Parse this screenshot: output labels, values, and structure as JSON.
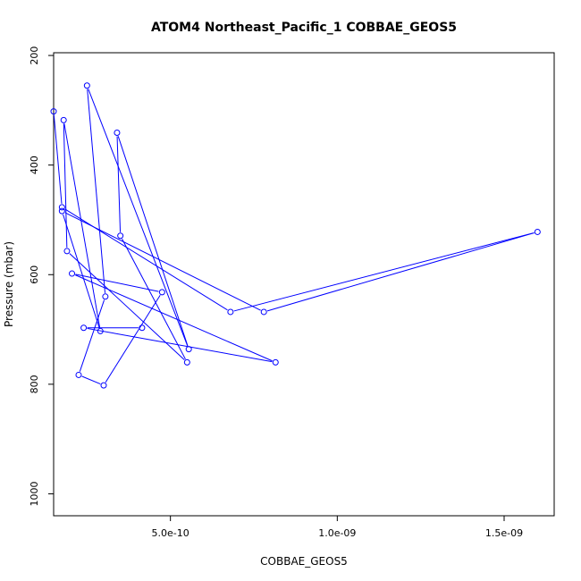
{
  "chart_data": {
    "type": "line",
    "title": "ATOM4 Northeast_Pacific_1 COBBAE_GEOS5",
    "xlabel": "COBBAE_GEOS5",
    "ylabel": "Pressure (mbar)",
    "xlim": [
      1.5e-10,
      1.65e-09
    ],
    "ylim": [
      1040,
      195
    ],
    "y_reversed": true,
    "grid": false,
    "legend": "none",
    "x_ticks": [
      {
        "value": 5e-10,
        "label": "5.0e-10"
      },
      {
        "value": 1e-09,
        "label": "1.0e-09"
      },
      {
        "value": 1.5e-09,
        "label": "1.5e-09"
      }
    ],
    "y_ticks": [
      {
        "value": 200,
        "label": "200"
      },
      {
        "value": 400,
        "label": "400"
      },
      {
        "value": 600,
        "label": "600"
      },
      {
        "value": 800,
        "label": "800"
      },
      {
        "value": 1000,
        "label": "1000"
      }
    ],
    "series": [
      {
        "color": "#0000ff",
        "marker": "open-circle",
        "points": [
          {
            "x": 1.5e-10,
            "y": 302
          },
          {
            "x": 1.75e-10,
            "y": 477
          },
          {
            "x": 6.8e-10,
            "y": 668
          },
          {
            "x": 1.6e-09,
            "y": 522
          },
          {
            "x": 7.8e-10,
            "y": 668
          },
          {
            "x": 1.75e-10,
            "y": 484
          },
          {
            "x": 2.9e-10,
            "y": 703
          },
          {
            "x": 1.8e-10,
            "y": 318
          },
          {
            "x": 1.9e-10,
            "y": 557
          },
          {
            "x": 5.5e-10,
            "y": 760
          },
          {
            "x": 3.5e-10,
            "y": 529
          },
          {
            "x": 3.4e-10,
            "y": 341
          },
          {
            "x": 5.55e-10,
            "y": 736
          },
          {
            "x": 2.5e-10,
            "y": 255
          },
          {
            "x": 3.05e-10,
            "y": 640
          },
          {
            "x": 2.25e-10,
            "y": 783
          },
          {
            "x": 3e-10,
            "y": 802
          },
          {
            "x": 4.75e-10,
            "y": 632
          },
          {
            "x": 2.05e-10,
            "y": 598
          },
          {
            "x": 8.15e-10,
            "y": 760
          },
          {
            "x": 2.4e-10,
            "y": 697
          },
          {
            "x": 4.15e-10,
            "y": 697
          }
        ]
      }
    ]
  }
}
